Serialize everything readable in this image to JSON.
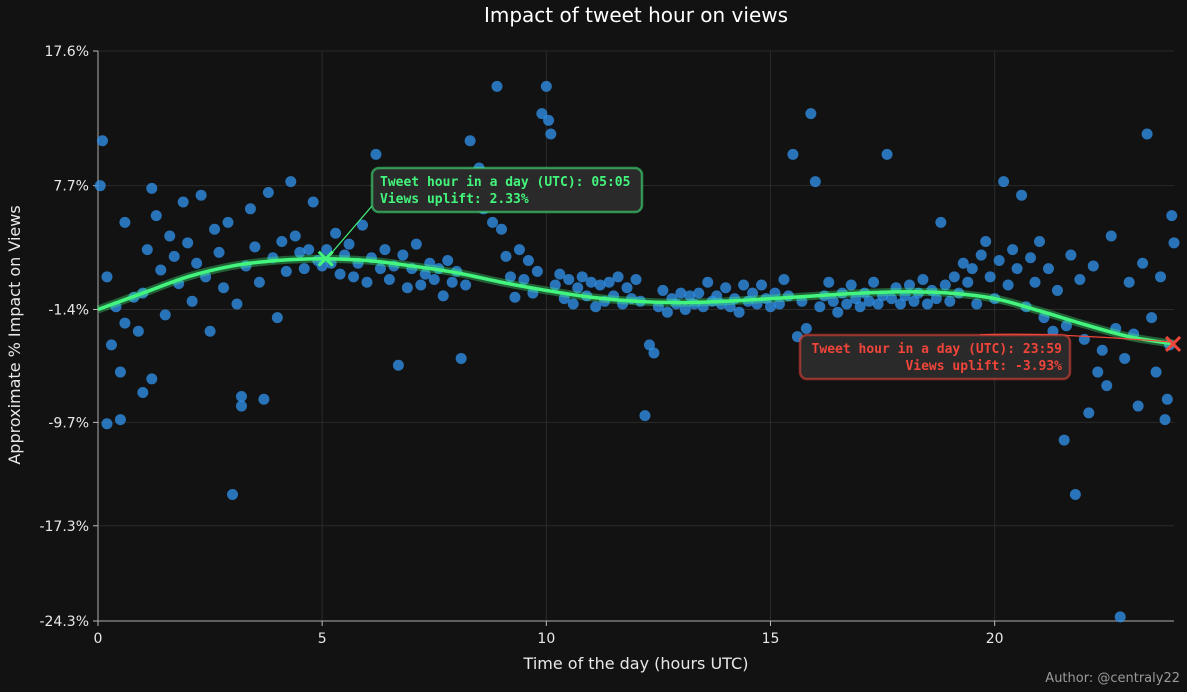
{
  "chart_data": {
    "type": "scatter",
    "title": "Impact of tweet hour on views",
    "xlabel": "Time of the day (hours UTC)",
    "ylabel": "Approximate % Impact on Views",
    "xlim": [
      0,
      24
    ],
    "ylim": [
      -24.3,
      17.6
    ],
    "xticks": [
      0,
      5,
      10,
      15,
      20
    ],
    "yticks": [
      -24.3,
      -17.3,
      -9.7,
      -1.4,
      7.7,
      17.6
    ],
    "ytick_labels": [
      "-24.3%",
      "-17.3%",
      "-9.7%",
      "-1.4%",
      "7.7%",
      "17.6%"
    ],
    "grid": true,
    "colors": {
      "points": "#2f8fe8",
      "trend": "#43f57d",
      "max": "#43f57d",
      "min": "#f0453a",
      "background": "#121212"
    },
    "trend": {
      "name": "",
      "x": [
        0,
        1,
        2,
        3,
        4,
        5,
        6,
        7,
        8,
        9,
        10,
        11,
        12,
        13,
        14,
        15,
        16,
        17,
        18,
        19,
        20,
        21,
        22,
        23,
        24
      ],
      "y": [
        -1.4,
        -0.2,
        1.0,
        1.8,
        2.2,
        2.33,
        2.2,
        1.8,
        1.3,
        0.6,
        0.0,
        -0.5,
        -0.8,
        -0.9,
        -0.8,
        -0.6,
        -0.4,
        -0.2,
        -0.1,
        -0.2,
        -0.6,
        -1.5,
        -2.5,
        -3.4,
        -3.93
      ]
    },
    "points": [
      [
        0.1,
        11.0
      ],
      [
        0.05,
        7.7
      ],
      [
        0.2,
        -9.8
      ],
      [
        0.4,
        -1.2
      ],
      [
        0.6,
        -2.4
      ],
      [
        0.3,
        -4.0
      ],
      [
        0.5,
        -9.5
      ],
      [
        0.8,
        -0.5
      ],
      [
        0.2,
        1.0
      ],
      [
        0.6,
        5.0
      ],
      [
        0.9,
        -3.0
      ],
      [
        1.0,
        -0.2
      ],
      [
        1.1,
        3.0
      ],
      [
        1.2,
        7.5
      ],
      [
        1.3,
        5.5
      ],
      [
        1.4,
        1.5
      ],
      [
        1.5,
        -1.8
      ],
      [
        1.2,
        -6.5
      ],
      [
        1.0,
        -7.5
      ],
      [
        0.5,
        -6.0
      ],
      [
        1.6,
        4.0
      ],
      [
        1.7,
        2.5
      ],
      [
        1.8,
        0.5
      ],
      [
        1.9,
        6.5
      ],
      [
        2.0,
        3.5
      ],
      [
        2.1,
        -0.8
      ],
      [
        2.2,
        2.0
      ],
      [
        2.3,
        7.0
      ],
      [
        2.4,
        1.0
      ],
      [
        2.5,
        -3.0
      ],
      [
        2.6,
        4.5
      ],
      [
        2.7,
        2.8
      ],
      [
        2.8,
        0.2
      ],
      [
        2.9,
        5.0
      ],
      [
        3.0,
        -15.0
      ],
      [
        3.1,
        -1.0
      ],
      [
        3.2,
        -8.5
      ],
      [
        3.2,
        -7.8
      ],
      [
        3.3,
        1.8
      ],
      [
        3.4,
        6.0
      ],
      [
        3.5,
        3.2
      ],
      [
        3.6,
        0.6
      ],
      [
        3.7,
        -8.0
      ],
      [
        3.8,
        7.2
      ],
      [
        3.9,
        2.4
      ],
      [
        4.0,
        -2.0
      ],
      [
        4.1,
        3.6
      ],
      [
        4.2,
        1.4
      ],
      [
        4.3,
        8.0
      ],
      [
        4.4,
        4.0
      ],
      [
        4.5,
        2.8
      ],
      [
        4.6,
        1.6
      ],
      [
        4.7,
        3.0
      ],
      [
        4.8,
        6.5
      ],
      [
        4.9,
        2.2
      ],
      [
        5.0,
        1.8
      ],
      [
        5.1,
        3.0
      ],
      [
        5.2,
        2.0
      ],
      [
        5.3,
        4.2
      ],
      [
        5.4,
        1.2
      ],
      [
        5.5,
        2.6
      ],
      [
        5.6,
        3.4
      ],
      [
        5.7,
        1.0
      ],
      [
        5.8,
        2.0
      ],
      [
        5.9,
        4.8
      ],
      [
        6.0,
        0.6
      ],
      [
        6.1,
        2.4
      ],
      [
        6.2,
        10.0
      ],
      [
        6.3,
        1.6
      ],
      [
        6.4,
        3.0
      ],
      [
        6.5,
        0.8
      ],
      [
        6.6,
        1.8
      ],
      [
        6.7,
        -5.5
      ],
      [
        6.8,
        2.6
      ],
      [
        6.9,
        0.2
      ],
      [
        7.0,
        1.6
      ],
      [
        7.1,
        3.4
      ],
      [
        7.2,
        0.4
      ],
      [
        7.3,
        1.2
      ],
      [
        7.4,
        2.0
      ],
      [
        7.5,
        0.8
      ],
      [
        7.6,
        1.6
      ],
      [
        7.7,
        -0.4
      ],
      [
        7.8,
        2.2
      ],
      [
        7.9,
        0.6
      ],
      [
        8.0,
        1.4
      ],
      [
        8.1,
        -5.0
      ],
      [
        8.2,
        0.4
      ],
      [
        8.3,
        11.0
      ],
      [
        8.4,
        7.5
      ],
      [
        8.5,
        9.0
      ],
      [
        8.6,
        6.0
      ],
      [
        8.7,
        7.0
      ],
      [
        8.8,
        5.0
      ],
      [
        8.9,
        15.0
      ],
      [
        9.0,
        4.5
      ],
      [
        9.1,
        2.5
      ],
      [
        9.2,
        1.0
      ],
      [
        9.3,
        -0.5
      ],
      [
        9.4,
        3.0
      ],
      [
        9.5,
        0.8
      ],
      [
        9.6,
        2.2
      ],
      [
        9.7,
        -0.2
      ],
      [
        9.8,
        1.4
      ],
      [
        9.9,
        13.0
      ],
      [
        10.0,
        15.0
      ],
      [
        10.05,
        12.5
      ],
      [
        10.1,
        11.5
      ],
      [
        10.2,
        0.4
      ],
      [
        10.3,
        1.2
      ],
      [
        10.4,
        -0.6
      ],
      [
        10.5,
        0.8
      ],
      [
        10.6,
        -1.0
      ],
      [
        10.7,
        0.2
      ],
      [
        10.8,
        1.0
      ],
      [
        10.9,
        -0.4
      ],
      [
        11.0,
        0.6
      ],
      [
        11.1,
        -1.2
      ],
      [
        11.2,
        0.4
      ],
      [
        11.3,
        -0.8
      ],
      [
        11.4,
        0.6
      ],
      [
        11.5,
        -0.4
      ],
      [
        11.6,
        1.0
      ],
      [
        11.7,
        -1.0
      ],
      [
        11.8,
        0.2
      ],
      [
        11.9,
        -0.6
      ],
      [
        12.0,
        0.8
      ],
      [
        12.1,
        -0.8
      ],
      [
        12.2,
        -9.2
      ],
      [
        12.3,
        -4.0
      ],
      [
        12.4,
        -4.6
      ],
      [
        12.5,
        -1.2
      ],
      [
        12.6,
        0.0
      ],
      [
        12.7,
        -1.6
      ],
      [
        12.8,
        -0.6
      ],
      [
        12.9,
        -1.0
      ],
      [
        13.0,
        -0.2
      ],
      [
        13.1,
        -1.4
      ],
      [
        13.2,
        -0.4
      ],
      [
        13.3,
        -1.0
      ],
      [
        13.4,
        -0.2
      ],
      [
        13.5,
        -1.2
      ],
      [
        13.6,
        0.6
      ],
      [
        13.7,
        -0.8
      ],
      [
        13.8,
        -0.4
      ],
      [
        13.9,
        -1.0
      ],
      [
        14.0,
        0.2
      ],
      [
        14.1,
        -1.2
      ],
      [
        14.2,
        -0.6
      ],
      [
        14.3,
        -1.6
      ],
      [
        14.4,
        0.4
      ],
      [
        14.5,
        -0.8
      ],
      [
        14.6,
        -0.2
      ],
      [
        14.7,
        -1.0
      ],
      [
        14.8,
        0.4
      ],
      [
        14.9,
        -0.6
      ],
      [
        15.0,
        -1.2
      ],
      [
        15.1,
        -0.2
      ],
      [
        15.2,
        -1.0
      ],
      [
        15.3,
        0.8
      ],
      [
        15.4,
        -0.4
      ],
      [
        15.5,
        10.0
      ],
      [
        15.6,
        -3.4
      ],
      [
        15.7,
        -0.8
      ],
      [
        15.8,
        -2.8
      ],
      [
        15.9,
        13.0
      ],
      [
        16.0,
        8.0
      ],
      [
        16.1,
        -1.2
      ],
      [
        16.2,
        -0.4
      ],
      [
        16.3,
        0.6
      ],
      [
        16.4,
        -0.8
      ],
      [
        16.5,
        -1.6
      ],
      [
        16.6,
        -0.2
      ],
      [
        16.7,
        -1.0
      ],
      [
        16.8,
        0.4
      ],
      [
        16.9,
        -0.6
      ],
      [
        17.0,
        -1.2
      ],
      [
        17.1,
        -0.2
      ],
      [
        17.2,
        -0.8
      ],
      [
        17.3,
        0.6
      ],
      [
        17.4,
        -1.0
      ],
      [
        17.5,
        -0.4
      ],
      [
        17.6,
        10.0
      ],
      [
        17.7,
        -0.6
      ],
      [
        17.8,
        0.2
      ],
      [
        17.9,
        -1.0
      ],
      [
        18.0,
        -0.4
      ],
      [
        18.1,
        0.4
      ],
      [
        18.2,
        -0.8
      ],
      [
        18.3,
        -0.2
      ],
      [
        18.4,
        0.8
      ],
      [
        18.5,
        -1.0
      ],
      [
        18.6,
        0.0
      ],
      [
        18.7,
        -0.6
      ],
      [
        18.8,
        5.0
      ],
      [
        18.9,
        0.4
      ],
      [
        19.0,
        -0.8
      ],
      [
        19.1,
        1.0
      ],
      [
        19.2,
        -0.2
      ],
      [
        19.3,
        2.0
      ],
      [
        19.4,
        0.6
      ],
      [
        19.5,
        1.6
      ],
      [
        19.6,
        -1.0
      ],
      [
        19.7,
        2.6
      ],
      [
        19.8,
        3.6
      ],
      [
        19.9,
        1.0
      ],
      [
        20.0,
        -0.6
      ],
      [
        20.1,
        2.2
      ],
      [
        20.2,
        8.0
      ],
      [
        20.3,
        0.4
      ],
      [
        20.4,
        3.0
      ],
      [
        20.5,
        1.6
      ],
      [
        20.6,
        7.0
      ],
      [
        20.7,
        -1.2
      ],
      [
        20.8,
        2.4
      ],
      [
        20.9,
        0.6
      ],
      [
        21.0,
        3.6
      ],
      [
        21.1,
        -2.0
      ],
      [
        21.2,
        1.6
      ],
      [
        21.3,
        -3.0
      ],
      [
        21.4,
        0.0
      ],
      [
        21.5,
        -4.2
      ],
      [
        21.55,
        -11.0
      ],
      [
        21.6,
        -2.6
      ],
      [
        21.7,
        2.6
      ],
      [
        21.8,
        -15.0
      ],
      [
        21.9,
        0.8
      ],
      [
        22.0,
        -3.6
      ],
      [
        22.1,
        -9.0
      ],
      [
        22.2,
        1.8
      ],
      [
        22.3,
        -6.0
      ],
      [
        22.4,
        -4.4
      ],
      [
        22.5,
        -7.0
      ],
      [
        22.6,
        4.0
      ],
      [
        22.7,
        -2.8
      ],
      [
        22.8,
        -24.0
      ],
      [
        22.9,
        -5.0
      ],
      [
        23.0,
        0.6
      ],
      [
        23.1,
        -3.2
      ],
      [
        23.2,
        -8.5
      ],
      [
        23.3,
        2.0
      ],
      [
        23.4,
        11.5
      ],
      [
        23.5,
        -2.0
      ],
      [
        23.6,
        -6.0
      ],
      [
        23.7,
        1.0
      ],
      [
        23.8,
        -9.5
      ],
      [
        23.9,
        -4.0
      ],
      [
        24.0,
        3.5
      ],
      [
        23.85,
        -8.0
      ],
      [
        23.95,
        5.5
      ]
    ],
    "annotations": [
      {
        "kind": "max",
        "x": 5.08,
        "y": 2.33,
        "label_line1": "Tweet hour in a day (UTC): 05:05",
        "label_line2": "Views uplift: 2.33%"
      },
      {
        "kind": "min",
        "x": 23.98,
        "y": -3.93,
        "label_line1": "Tweet hour in a day (UTC): 23:59",
        "label_line2": "Views uplift: -3.93%"
      }
    ],
    "credit": "Author: @centraly22"
  }
}
